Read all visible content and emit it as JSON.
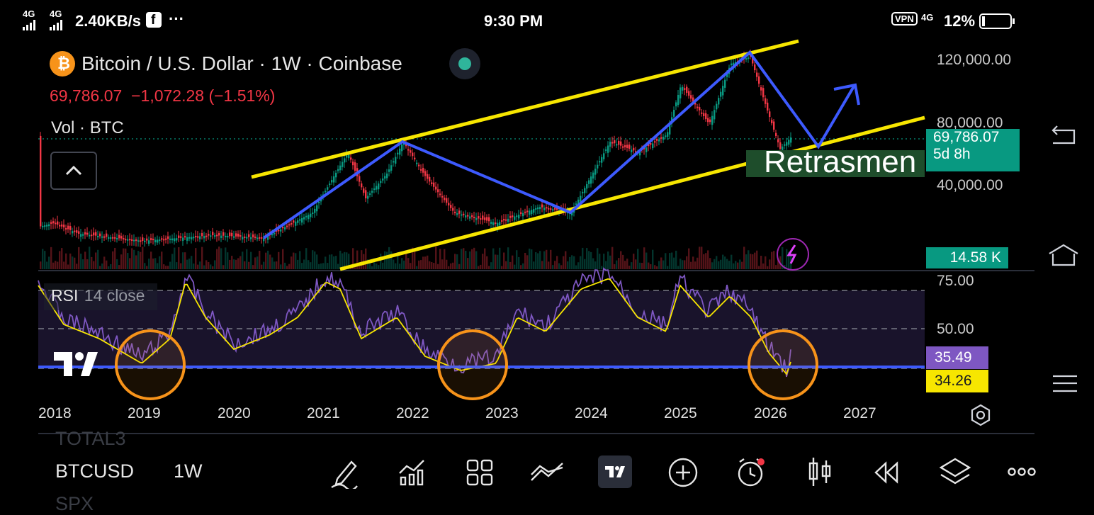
{
  "status_bar": {
    "network_left": "4G",
    "network_left2": "4G",
    "speed": "2.40KB/s",
    "more": "···",
    "time": "9:30 PM",
    "vpn": "VPN",
    "network_right": "4G",
    "battery_pct": "12%"
  },
  "chart_header": {
    "title": "Bitcoin / U.S. Dollar · 1W · Coinbase",
    "price": "69,786.07",
    "change": "−1,072.28 (−1.51%)",
    "volume_label": "Vol · BTC"
  },
  "price_axis": {
    "ticks": [
      "120,000.00",
      "80,000.00",
      "40,000.00"
    ],
    "current_price": "69,786.07",
    "countdown": "5d 8h",
    "volume_value": "14.58 K"
  },
  "annotation": {
    "text": "Retrasmen"
  },
  "rsi": {
    "label": "RSI",
    "params": "14 close",
    "ticks": [
      "75.00",
      "50.00"
    ],
    "rsi_value": "35.49",
    "ma_value": "34.26",
    "rsi_color": "#7e57c2",
    "ma_color": "#f7e600"
  },
  "time_axis": {
    "years": [
      "2018",
      "2019",
      "2020",
      "2021",
      "2022",
      "2023",
      "2024",
      "2025",
      "2026",
      "2027"
    ]
  },
  "bottom_bar": {
    "tickers": [
      "TOTAL3",
      "BTCUSD",
      "SPX"
    ],
    "interval": "1W"
  },
  "colors": {
    "up": "#089981",
    "down": "#f23645",
    "trendline": "#f7e600",
    "path": "#3d5afe",
    "circle": "#f7931a"
  },
  "icons": {
    "logo": "tradingview-logo",
    "collapse": "chevron-up-icon",
    "settings": "gear-icon"
  }
}
